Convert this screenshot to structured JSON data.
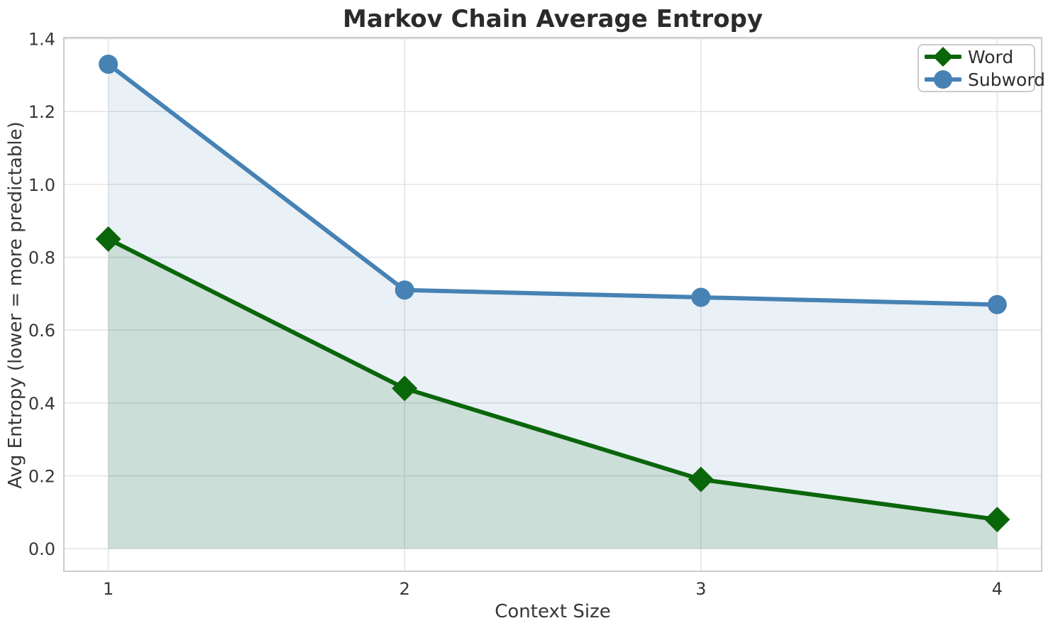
{
  "chart_data": {
    "type": "line",
    "title": "Markov Chain Average Entropy",
    "xlabel": "Context Size",
    "ylabel": "Avg Entropy (lower = more predictable)",
    "x": [
      1,
      2,
      3,
      4
    ],
    "series": [
      {
        "name": "Word",
        "values": [
          0.85,
          0.44,
          0.19,
          0.08
        ],
        "color": "#0a660a",
        "fill_color": "rgba(0, 100, 0, 0.12)",
        "marker": "diamond"
      },
      {
        "name": "Subword",
        "values": [
          1.33,
          0.71,
          0.69,
          0.67
        ],
        "color": "#4682b4",
        "fill_color": "rgba(70, 130, 180, 0.12)",
        "marker": "circle"
      }
    ],
    "xticks": [
      1,
      2,
      3,
      4
    ],
    "xtick_labels": [
      "1",
      "2",
      "3",
      "4"
    ],
    "yticks": [
      0.0,
      0.2,
      0.4,
      0.6,
      0.8,
      1.0,
      1.2,
      1.4
    ],
    "ytick_labels": [
      "0.0",
      "0.2",
      "0.4",
      "0.6",
      "0.8",
      "1.0",
      "1.2",
      "1.4"
    ],
    "xlim": [
      0.85,
      4.15
    ],
    "ylim": [
      -0.062,
      1.403
    ],
    "fill_baseline": 0,
    "grid": true,
    "grid_color": "#e4e4e4",
    "spine_color": "#cccccc",
    "legend_position": "upper right",
    "title_color": "#2b2b2b",
    "text_color": "#373737",
    "background_color": "#ffffff"
  },
  "legend": {
    "items": [
      {
        "label": "Word"
      },
      {
        "label": "Subword"
      }
    ]
  }
}
